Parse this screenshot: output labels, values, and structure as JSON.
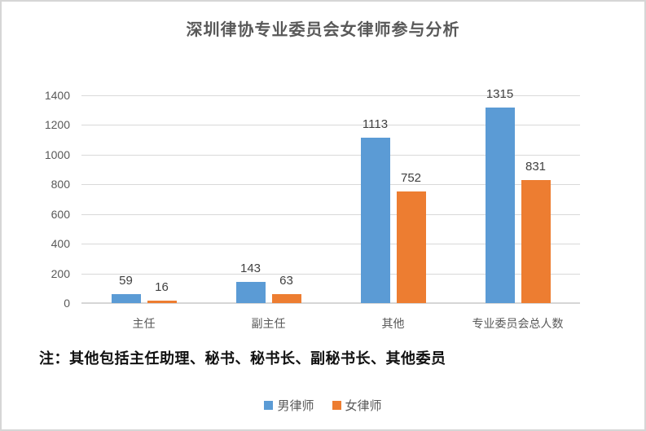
{
  "window": {
    "background": "#ffffff",
    "border_color": "#d6d6d6"
  },
  "title": "深圳律协专业委员会女律师参与分析",
  "note": "注：其他包括主任助理、秘书、秘书长、副秘书长、其他委员",
  "colors": {
    "series_male": "#5B9BD5",
    "series_female": "#ED7D31",
    "gridline": "#d9d9d9",
    "axis_line": "#d6d6d6",
    "title_text": "#595959",
    "tick_text": "#595959",
    "data_label_text": "#404040",
    "note_text": "#111111"
  },
  "legend": {
    "items": [
      {
        "label": "男律师",
        "color": "#5B9BD5"
      },
      {
        "label": "女律师",
        "color": "#ED7D31"
      }
    ]
  },
  "chart_data": {
    "type": "bar",
    "title": "深圳律协专业委员会女律师参与分析",
    "categories": [
      "主任",
      "副主任",
      "其他",
      "专业委员会总人数"
    ],
    "series": [
      {
        "name": "男律师",
        "color": "#5B9BD5",
        "values": [
          59,
          143,
          1113,
          1315
        ]
      },
      {
        "name": "女律师",
        "color": "#ED7D31",
        "values": [
          16,
          63,
          752,
          831
        ]
      }
    ],
    "xlabel": "",
    "ylabel": "",
    "ylim": [
      0,
      1400
    ],
    "yticks": [
      0,
      200,
      400,
      600,
      800,
      1000,
      1200,
      1400
    ],
    "grid": true,
    "data_labels": true,
    "legend_position": "bottom",
    "annotation": "注：其他包括主任助理、秘书、秘书长、副秘书长、其他委员"
  }
}
